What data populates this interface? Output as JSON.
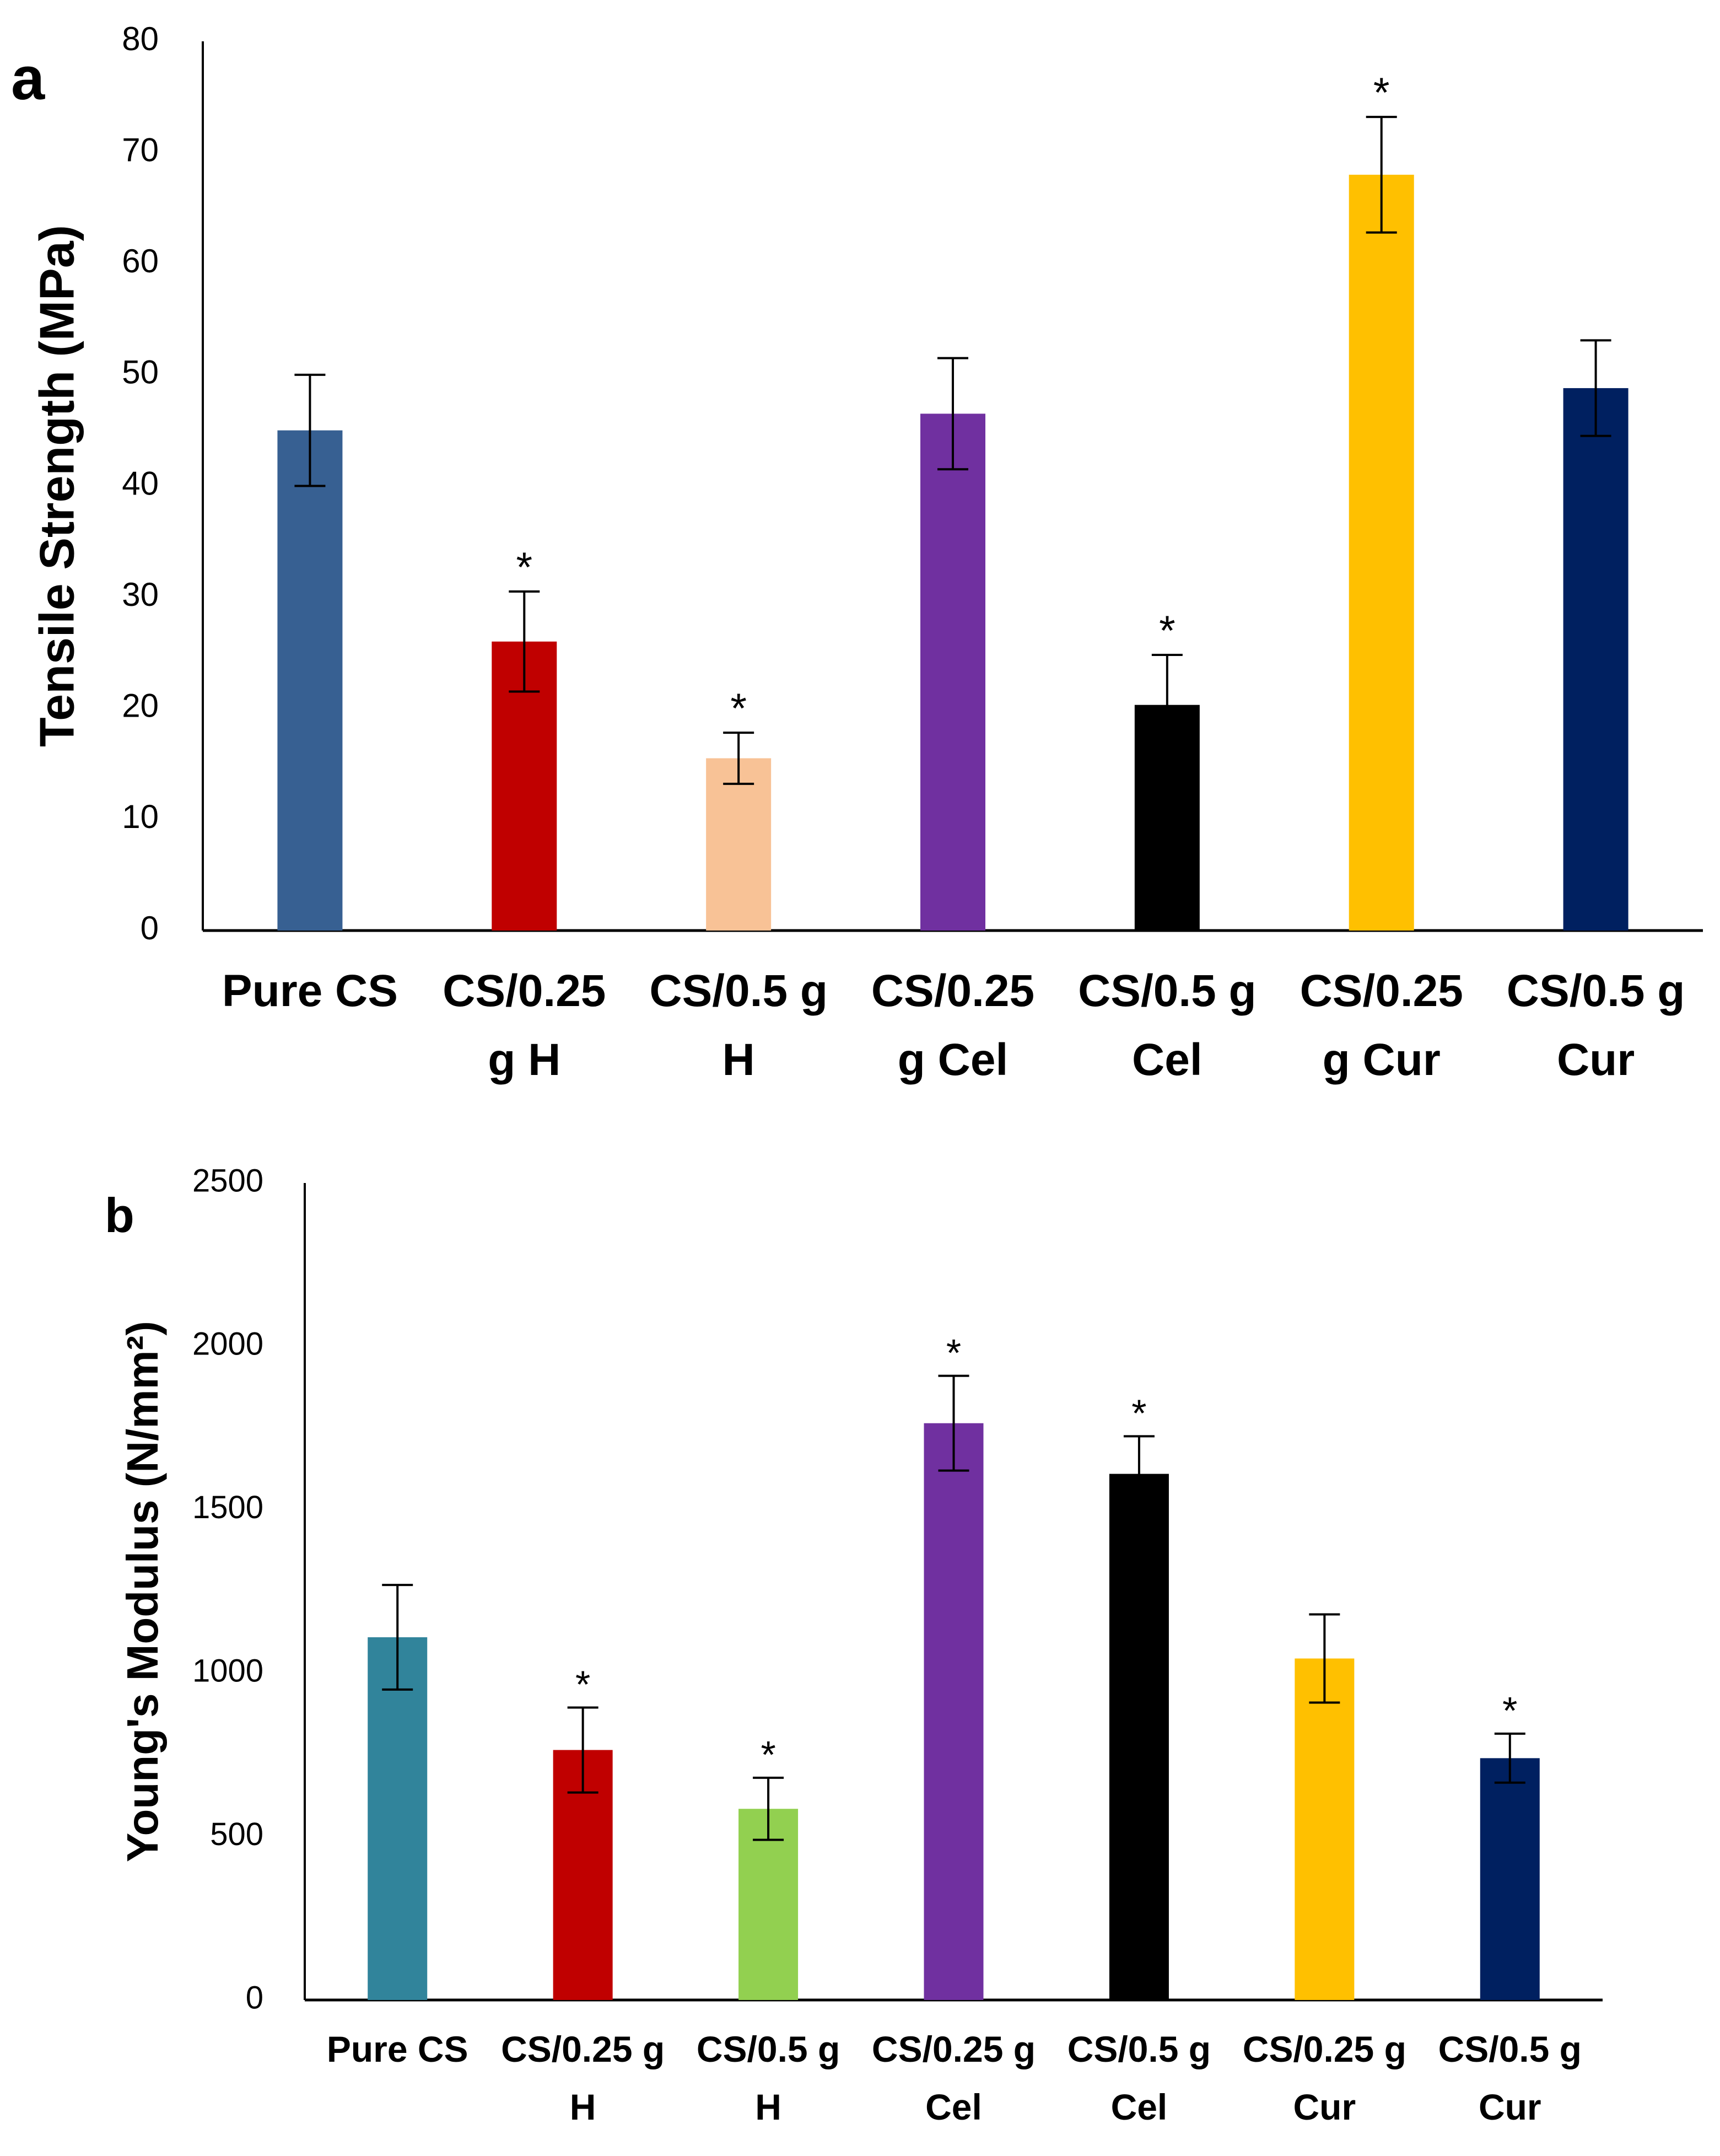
{
  "chart_data": [
    {
      "panel": "a",
      "type": "bar",
      "ylabel": "Tensile Strength (MPa)",
      "xlabel": "",
      "ylim": [
        0,
        80
      ],
      "yticks": [
        0,
        10,
        20,
        30,
        40,
        50,
        60,
        70,
        80
      ],
      "categories": [
        [
          "Pure CS"
        ],
        [
          "CS/0.25",
          "g H"
        ],
        [
          "CS/0.5 g",
          "H"
        ],
        [
          "CS/0.25",
          "g Cel"
        ],
        [
          "CS/0.5 g",
          "Cel"
        ],
        [
          "CS/0.25",
          "g Cur"
        ],
        [
          "CS/0.5 g",
          "Cur"
        ]
      ],
      "values": [
        45,
        26,
        15.5,
        46.5,
        20.3,
        68,
        48.8
      ],
      "errors": [
        5,
        4.5,
        2.3,
        5,
        4.5,
        5.2,
        4.3
      ],
      "significant": [
        false,
        true,
        true,
        false,
        true,
        true,
        false
      ],
      "marker": "*",
      "colors": [
        "#376092",
        "#c00000",
        "#f8c296",
        "#7030a0",
        "#000000",
        "#ffc000",
        "#002060"
      ]
    },
    {
      "panel": "b",
      "type": "bar",
      "ylabel": "Young's Modulus (N/mm²)",
      "xlabel": "",
      "ylim": [
        0,
        2500
      ],
      "yticks": [
        0,
        500,
        1000,
        1500,
        2000,
        2500
      ],
      "categories": [
        [
          "Pure CS"
        ],
        [
          "CS/0.25 g",
          "H"
        ],
        [
          "CS/0.5 g",
          "H"
        ],
        [
          "CS/0.25 g",
          "Cel"
        ],
        [
          "CS/0.5 g",
          "Cel"
        ],
        [
          "CS/0.25 g",
          "Cur"
        ],
        [
          "CS/0.5 g",
          "Cur"
        ]
      ],
      "values": [
        1110,
        765,
        585,
        1765,
        1610,
        1045,
        740
      ],
      "errors": [
        160,
        130,
        95,
        145,
        115,
        135,
        75
      ],
      "significant": [
        false,
        true,
        true,
        true,
        true,
        false,
        true
      ],
      "marker": "*",
      "colors": [
        "#31849b",
        "#c00000",
        "#92d050",
        "#7030a0",
        "#000000",
        "#ffc000",
        "#002060"
      ]
    }
  ]
}
